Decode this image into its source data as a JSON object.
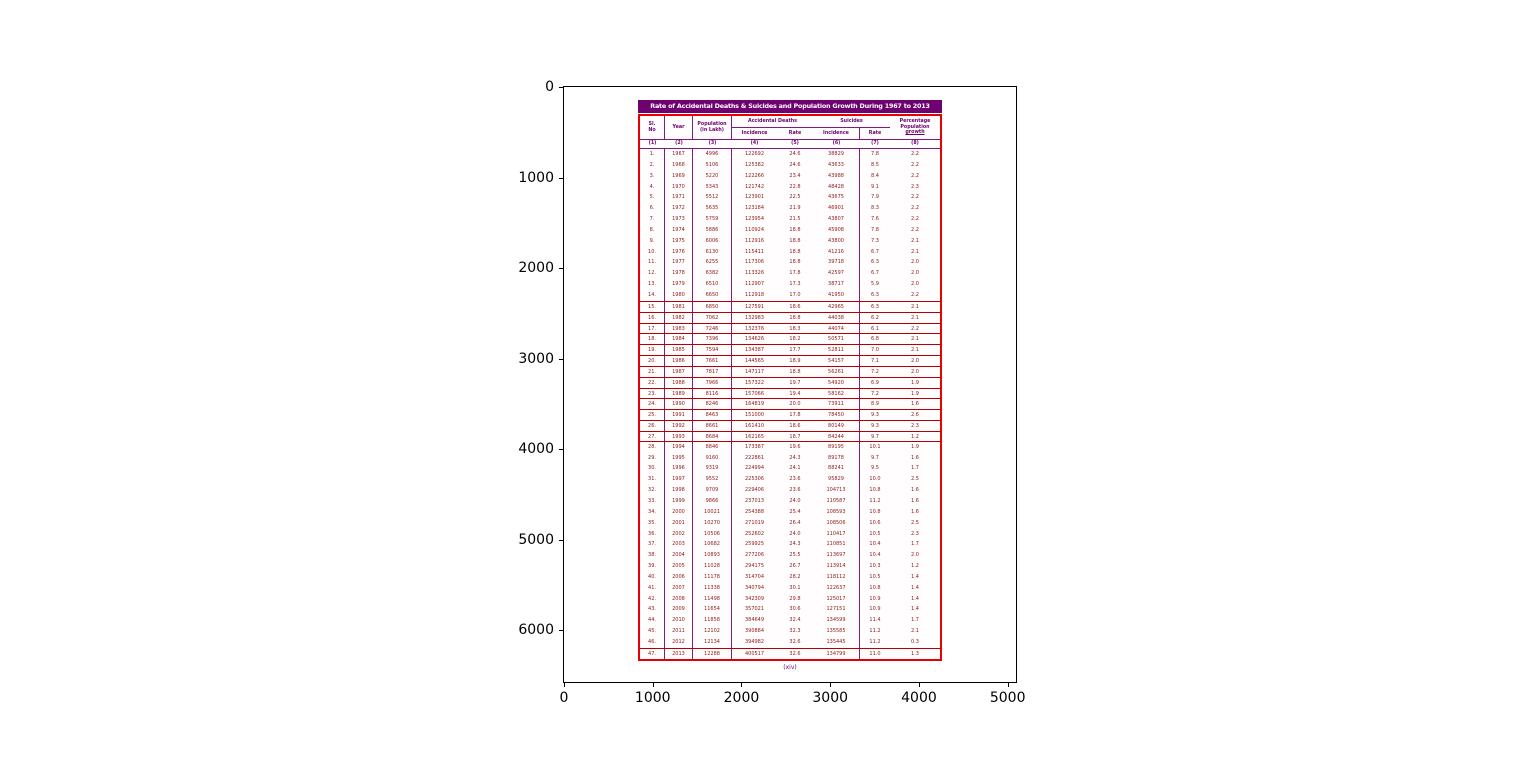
{
  "figure": {
    "background": "#ffffff",
    "x_ticks": [
      "0",
      "1000",
      "2000",
      "3000",
      "4000",
      "5000"
    ],
    "y_ticks": [
      "0",
      "1000",
      "2000",
      "3000",
      "4000",
      "5000",
      "6000"
    ]
  },
  "scan": {
    "title": "Rate of Accidental Deaths & Suicides and Population Growth During 1967 to 2013",
    "footer": "(xiv)",
    "colors": {
      "title_bar": "#6e0070",
      "title_text": "#ffffff",
      "outer_border": "#e60000",
      "column_lines": "#7d1b7e",
      "row_group_lines": "#b40000",
      "data_text": "#8c1a1a"
    },
    "header": {
      "sl_no": [
        "Sl.",
        "No"
      ],
      "year": "Year",
      "population": [
        "Population",
        "(in Lakh)"
      ],
      "accidental_deaths": "Accidental Deaths",
      "suicides": "Suicides",
      "incidence": "Incidence",
      "rate": "Rate",
      "pct_growth": [
        "Percentage",
        "Population",
        "growth"
      ],
      "col_numbers": [
        "(1)",
        "(2)",
        "(3)",
        "(4)",
        "(5)",
        "(6)",
        "(7)",
        "(8)"
      ]
    },
    "boxed_rows_from": 15,
    "boxed_rows_to": 27,
    "rows": [
      [
        1,
        1967,
        4996,
        122692,
        24.6,
        38829,
        7.8,
        2.2
      ],
      [
        2,
        1968,
        5106,
        125382,
        24.6,
        43633,
        8.5,
        2.2
      ],
      [
        3,
        1969,
        5220,
        122266,
        23.4,
        43988,
        8.4,
        2.2
      ],
      [
        4,
        1970,
        5343,
        121742,
        22.8,
        48428,
        9.1,
        2.3
      ],
      [
        5,
        1971,
        5512,
        123901,
        22.5,
        43675,
        7.9,
        2.2
      ],
      [
        6,
        1972,
        5635,
        123184,
        21.9,
        46901,
        8.3,
        2.2
      ],
      [
        7,
        1973,
        5759,
        123954,
        21.5,
        43807,
        7.6,
        2.2
      ],
      [
        8,
        1974,
        5886,
        110924,
        18.8,
        45908,
        7.8,
        2.2
      ],
      [
        9,
        1975,
        6006,
        112916,
        18.8,
        43800,
        7.3,
        2.1
      ],
      [
        10,
        1976,
        6130,
        115411,
        18.8,
        41216,
        6.7,
        2.1
      ],
      [
        11,
        1977,
        6255,
        117306,
        18.8,
        39718,
        6.3,
        2.0
      ],
      [
        12,
        1978,
        6382,
        113326,
        17.8,
        42597,
        6.7,
        2.0
      ],
      [
        13,
        1979,
        6510,
        112907,
        17.3,
        38717,
        5.9,
        2.0
      ],
      [
        14,
        1980,
        6650,
        112918,
        17.0,
        41950,
        6.3,
        2.2
      ],
      [
        15,
        1981,
        6850,
        127591,
        18.6,
        42965,
        6.3,
        2.1
      ],
      [
        16,
        1982,
        7062,
        132983,
        18.8,
        44038,
        6.2,
        2.1
      ],
      [
        17,
        1983,
        7246,
        132376,
        18.3,
        44074,
        6.1,
        2.2
      ],
      [
        18,
        1984,
        7396,
        134626,
        18.2,
        50571,
        6.8,
        2.1
      ],
      [
        19,
        1985,
        7594,
        134387,
        17.7,
        52811,
        7.0,
        2.1
      ],
      [
        20,
        1986,
        7661,
        144565,
        18.9,
        54157,
        7.1,
        2.0
      ],
      [
        21,
        1987,
        7817,
        147117,
        18.8,
        56261,
        7.2,
        2.0
      ],
      [
        22,
        1988,
        7966,
        157322,
        19.7,
        54920,
        6.9,
        1.9
      ],
      [
        23,
        1989,
        8116,
        157066,
        19.4,
        58162,
        7.2,
        1.9
      ],
      [
        24,
        1990,
        8246,
        164819,
        20.0,
        73911,
        8.9,
        1.6
      ],
      [
        25,
        1991,
        8463,
        151000,
        17.8,
        78450,
        9.3,
        2.6
      ],
      [
        26,
        1992,
        8661,
        161410,
        18.6,
        80149,
        9.3,
        2.3
      ],
      [
        27,
        1993,
        8684,
        162165,
        18.7,
        84244,
        9.7,
        1.2
      ],
      [
        28,
        1994,
        8846,
        173387,
        19.6,
        89195,
        10.1,
        1.9
      ],
      [
        29,
        1995,
        9160,
        222861,
        24.3,
        89178,
        9.7,
        1.6
      ],
      [
        30,
        1996,
        9319,
        224994,
        24.1,
        88241,
        9.5,
        1.7
      ],
      [
        31,
        1997,
        9552,
        225306,
        23.6,
        95829,
        10.0,
        2.5
      ],
      [
        32,
        1998,
        9709,
        229406,
        23.6,
        104713,
        10.8,
        1.6
      ],
      [
        33,
        1999,
        9866,
        237013,
        24.0,
        110587,
        11.2,
        1.6
      ],
      [
        34,
        2000,
        10021,
        254388,
        25.4,
        108593,
        10.8,
        1.6
      ],
      [
        35,
        2001,
        10270,
        271019,
        26.4,
        108506,
        10.6,
        2.5
      ],
      [
        36,
        2002,
        10506,
        252602,
        24.0,
        110417,
        10.5,
        2.3
      ],
      [
        37,
        2003,
        10682,
        259925,
        24.3,
        110851,
        10.4,
        1.7
      ],
      [
        38,
        2004,
        10893,
        277206,
        25.5,
        113697,
        10.4,
        2.0
      ],
      [
        39,
        2005,
        11028,
        294175,
        26.7,
        113914,
        10.3,
        1.2
      ],
      [
        40,
        2006,
        11178,
        314704,
        28.2,
        118112,
        10.5,
        1.4
      ],
      [
        41,
        2007,
        11338,
        340794,
        30.1,
        122637,
        10.8,
        1.4
      ],
      [
        42,
        2008,
        11498,
        342309,
        29.8,
        125017,
        10.9,
        1.4
      ],
      [
        43,
        2009,
        11654,
        357021,
        30.6,
        127151,
        10.9,
        1.4
      ],
      [
        44,
        2010,
        11858,
        384649,
        32.4,
        134599,
        11.4,
        1.7
      ],
      [
        45,
        2011,
        12102,
        390884,
        32.3,
        135585,
        11.2,
        2.1
      ],
      [
        46,
        2012,
        12134,
        394982,
        32.6,
        135445,
        11.2,
        0.3
      ],
      [
        47,
        2013,
        12288,
        400517,
        32.6,
        134799,
        11.0,
        1.3
      ]
    ]
  },
  "chart_data": {
    "type": "table",
    "title": "Rate of Accidental Deaths & Suicides and Population Growth During 1967 to 2013",
    "note": "Scanned document table displayed inside matplotlib axes (pixel coordinates)",
    "x_axis_ticks": [
      0,
      1000,
      2000,
      3000,
      4000,
      5000
    ],
    "y_axis_ticks": [
      0,
      1000,
      2000,
      3000,
      4000,
      5000,
      6000
    ],
    "xlim": [
      0,
      5115
    ],
    "ylim": [
      6600,
      0
    ],
    "grid": false,
    "legend": "none",
    "columns": [
      "Sl. No",
      "Year",
      "Population (in Lakh)",
      "Accidental Deaths Incidence",
      "Accidental Deaths Rate",
      "Suicides Incidence",
      "Suicides Rate",
      "Percentage Population growth"
    ],
    "rows_ref": "scan.rows"
  }
}
